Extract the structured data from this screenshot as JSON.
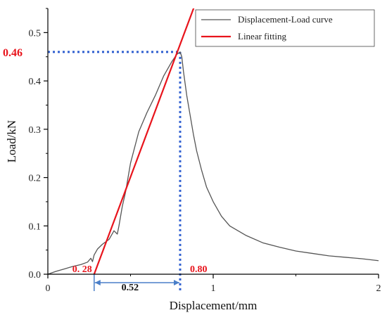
{
  "chart_data": {
    "type": "line",
    "xlabel": "Displacement/mm",
    "ylabel": "Load/kN",
    "xlim": [
      0,
      2
    ],
    "ylim": [
      0,
      0.55
    ],
    "x_ticks": [
      0,
      1,
      2
    ],
    "y_ticks": [
      0.0,
      0.1,
      0.2,
      0.3,
      0.4,
      0.5
    ],
    "x_tick_labels": [
      "0",
      "1",
      "2"
    ],
    "y_tick_labels": [
      "0.0",
      "0.1",
      "0.2",
      "0.3",
      "0.4",
      "0.5"
    ],
    "grid": false,
    "legend_position": "top-right",
    "series": [
      {
        "name": "Displacement-Load curve",
        "color": "#555555",
        "x": [
          0.0,
          0.05,
          0.1,
          0.15,
          0.2,
          0.24,
          0.26,
          0.27,
          0.28,
          0.3,
          0.33,
          0.37,
          0.4,
          0.42,
          0.43,
          0.45,
          0.47,
          0.5,
          0.55,
          0.6,
          0.65,
          0.7,
          0.75,
          0.78,
          0.8,
          0.81,
          0.82,
          0.84,
          0.86,
          0.88,
          0.9,
          0.93,
          0.96,
          1.0,
          1.05,
          1.1,
          1.2,
          1.3,
          1.4,
          1.5,
          1.6,
          1.7,
          1.8,
          1.9,
          2.0
        ],
        "y": [
          0.0,
          0.006,
          0.011,
          0.016,
          0.02,
          0.025,
          0.033,
          0.026,
          0.04,
          0.052,
          0.062,
          0.072,
          0.09,
          0.083,
          0.1,
          0.14,
          0.17,
          0.23,
          0.295,
          0.335,
          0.37,
          0.41,
          0.44,
          0.455,
          0.46,
          0.45,
          0.42,
          0.37,
          0.33,
          0.29,
          0.255,
          0.215,
          0.18,
          0.15,
          0.12,
          0.1,
          0.08,
          0.065,
          0.056,
          0.048,
          0.043,
          0.038,
          0.035,
          0.032,
          0.028
        ]
      },
      {
        "name": "Linear fitting",
        "color": "#e8141c",
        "x": [
          0.28,
          0.89
        ],
        "y": [
          0.0,
          0.558
        ]
      }
    ],
    "annotations": [
      {
        "text": "0.46",
        "x": 0.0,
        "y": 0.46,
        "color": "#e8141c"
      },
      {
        "text": "0. 28",
        "x": 0.28,
        "y": 0.0,
        "color": "#e8141c"
      },
      {
        "text": "0.80",
        "x": 0.8,
        "y": 0.0,
        "color": "#e8141c"
      },
      {
        "text": "0.52",
        "x": 0.54,
        "y": 0.0,
        "color": "#111111"
      }
    ],
    "peak": {
      "x": 0.8,
      "y": 0.46
    },
    "span": {
      "from": 0.28,
      "to": 0.8
    }
  }
}
